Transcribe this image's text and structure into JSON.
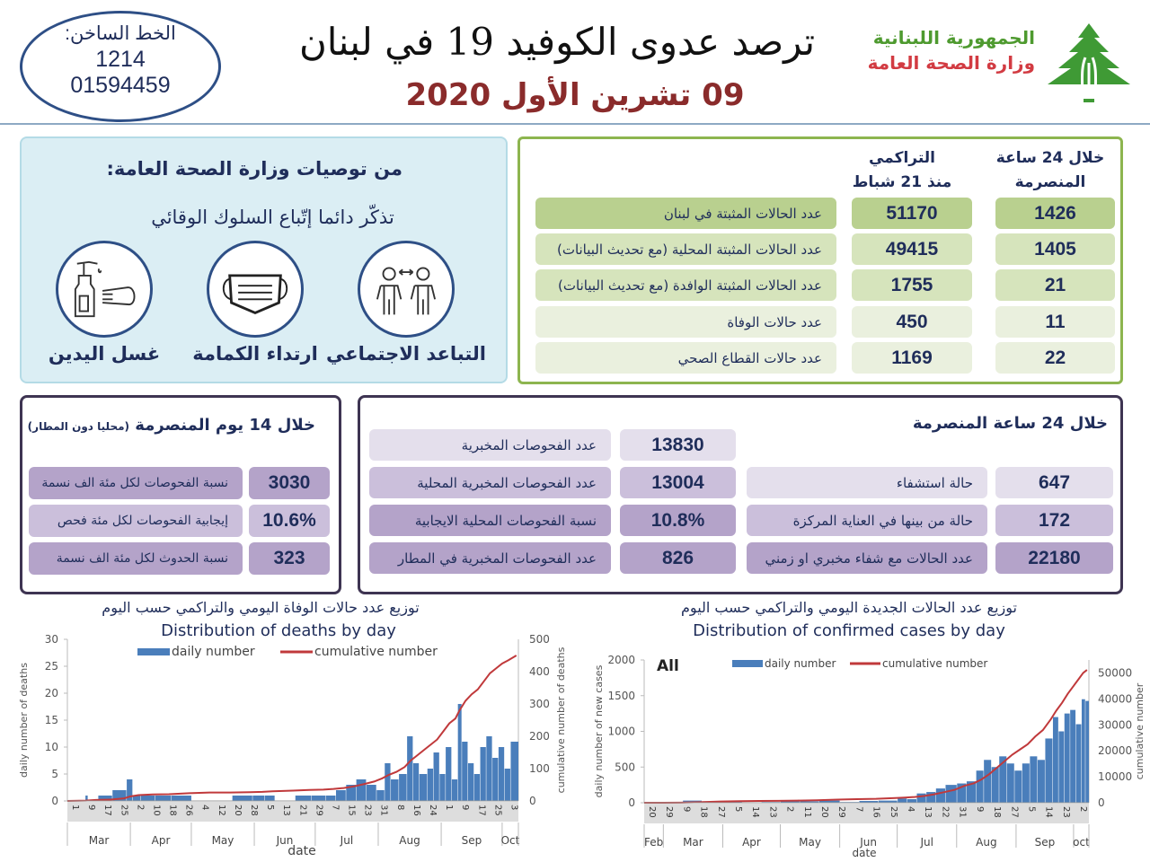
{
  "header": {
    "hotline_label": "الخط الساخن:",
    "hotline_number_1": "1214",
    "hotline_number_2": "01594459",
    "title": "ترصد عدوى الكوفيد 19 في لبنان",
    "date": "09 تشرين الأول 2020",
    "republic": "الجمهورية اللبنانية",
    "ministry": "وزارة الصحة العامة",
    "logo_icon": "cedar-tree-icon"
  },
  "recommendations": {
    "heading": "من توصيات وزارة الصحة العامة:",
    "subheading": "تذكّر دائما إتّباع السلوك الوقائي",
    "items": [
      {
        "label": "التباعد الاجتماعي",
        "icon": "social-distancing-icon"
      },
      {
        "label": "ارتداء الكمامة",
        "icon": "face-mask-icon"
      },
      {
        "label": "غسل اليدين",
        "icon": "hand-sanitizer-icon"
      }
    ]
  },
  "stats": {
    "col_24h": [
      "خلال 24 ساعة",
      "المنصرمة"
    ],
    "col_cumulative": [
      "التراكمي",
      "منذ 21 شباط"
    ],
    "rows": [
      {
        "label": "عدد الحالات المثبتة في لبنان",
        "cumulative": "51170",
        "last24h": "1426"
      },
      {
        "label": "عدد الحالات المثبتة المحلية (مع تحديث البيانات)",
        "cumulative": "49415",
        "last24h": "1405"
      },
      {
        "label": "عدد الحالات المثبتة الوافدة (مع تحديث البيانات)",
        "cumulative": "1755",
        "last24h": "21"
      },
      {
        "label": "عدد حالات الوفاة",
        "cumulative": "450",
        "last24h": "11"
      },
      {
        "label": "عدد حالات القطاع الصحي",
        "cumulative": "1169",
        "last24h": "22"
      }
    ]
  },
  "days14": {
    "title": "خلال 14 يوم المنصرمة",
    "title_note": "(محليا دون المطار)",
    "rows": [
      {
        "label": "نسبة الفحوصات لكل مئة الف نسمة",
        "value": "3030"
      },
      {
        "label": "إيجابية الفحوصات لكل مئة فحص",
        "value": "10.6%"
      },
      {
        "label": "نسبة الحدوث لكل مئة الف نسمة",
        "value": "323"
      }
    ]
  },
  "hours24": {
    "title": "خلال 24 ساعة المنصرمة",
    "tests": [
      {
        "label": "عدد الفحوصات المخبرية",
        "value": "13830"
      },
      {
        "label": "عدد الفحوصات المخبرية  المحلية",
        "value": "13004"
      },
      {
        "label": "نسبة الفحوصات المحلية الايجابية",
        "value": "10.8%"
      },
      {
        "label": "عدد الفحوصات المخبرية في المطار",
        "value": "826"
      }
    ],
    "hospital": [
      {
        "label": "حالة استشفاء",
        "value": "647"
      },
      {
        "label": "حالة من بينها في العناية المركزة",
        "value": "172"
      },
      {
        "label": "عدد الحالات مع شفاء مخبري او زمني",
        "value": "22180"
      }
    ]
  },
  "colors": {
    "bars": "#4a7ebb",
    "line": "#c0393b",
    "green_border": "#8db54f",
    "purple_border": "#3e3452",
    "title_red": "#8a2b2b"
  },
  "chart_data": [
    {
      "type": "bar",
      "title_ar": "توزيع عدد حالات  الوفاة اليومي والتراكمي حسب اليوم",
      "title": "Distribution of deaths by day",
      "xlabel": "date",
      "ylabel": "daily number of deaths",
      "y2label": "cumulative number of deaths",
      "xlim": [
        "2020-03-01",
        "2020-10-08"
      ],
      "ylim": [
        0,
        30
      ],
      "y2lim": [
        0,
        500
      ],
      "yticks": [
        0,
        5,
        10,
        15,
        20,
        25,
        30
      ],
      "y2ticks": [
        0,
        100,
        200,
        300,
        400,
        500
      ],
      "x_ticks": [
        "2020-03-01",
        "2020-03-09",
        "2020-03-17",
        "2020-03-25",
        "2020-04-02",
        "2020-04-10",
        "2020-04-18",
        "2020-04-26",
        "2020-05-04",
        "2020-05-12",
        "2020-05-20",
        "2020-05-28",
        "2020-06-05",
        "2020-06-13",
        "2020-06-21",
        "2020-06-29",
        "2020-07-07",
        "2020-07-15",
        "2020-07-23",
        "2020-07-31",
        "2020-08-08",
        "2020-08-16",
        "2020-08-24",
        "2020-09-01",
        "2020-09-09",
        "2020-09-17",
        "2020-09-25",
        "2020-10-03"
      ],
      "months": [
        "Mar",
        "Apr",
        "May",
        "Jun",
        "Jul",
        "Aug",
        "Sep",
        "Oct"
      ],
      "legend": "top-center",
      "series": [
        {
          "name": "daily number",
          "kind": "bar"
        },
        {
          "name": "cumulative number",
          "kind": "line",
          "axis": "right"
        }
      ],
      "points": [
        [
          "2020-03-10",
          1,
          1
        ],
        [
          "2020-03-15",
          0,
          3
        ],
        [
          "2020-03-22",
          1,
          4
        ],
        [
          "2020-03-29",
          2,
          8
        ],
        [
          "2020-04-01",
          4,
          14
        ],
        [
          "2020-04-05",
          1,
          18
        ],
        [
          "2020-04-12",
          1,
          20
        ],
        [
          "2020-04-20",
          1,
          21
        ],
        [
          "2020-04-30",
          1,
          24
        ],
        [
          "2020-05-10",
          0,
          26
        ],
        [
          "2020-05-20",
          0,
          26
        ],
        [
          "2020-05-30",
          1,
          27
        ],
        [
          "2020-06-05",
          1,
          28
        ],
        [
          "2020-06-10",
          1,
          30
        ],
        [
          "2020-06-20",
          0,
          32
        ],
        [
          "2020-06-28",
          1,
          34
        ],
        [
          "2020-07-05",
          1,
          35
        ],
        [
          "2020-07-10",
          1,
          37
        ],
        [
          "2020-07-15",
          2,
          40
        ],
        [
          "2020-07-20",
          3,
          45
        ],
        [
          "2020-07-25",
          4,
          52
        ],
        [
          "2020-07-30",
          3,
          60
        ],
        [
          "2020-08-03",
          2,
          70
        ],
        [
          "2020-08-06",
          7,
          80
        ],
        [
          "2020-08-10",
          4,
          90
        ],
        [
          "2020-08-14",
          5,
          105
        ],
        [
          "2020-08-17",
          12,
          125
        ],
        [
          "2020-08-20",
          7,
          140
        ],
        [
          "2020-08-24",
          5,
          160
        ],
        [
          "2020-08-27",
          6,
          175
        ],
        [
          "2020-08-30",
          9,
          190
        ],
        [
          "2020-09-02",
          5,
          215
        ],
        [
          "2020-09-05",
          10,
          240
        ],
        [
          "2020-09-08",
          4,
          255
        ],
        [
          "2020-09-10",
          18,
          280
        ],
        [
          "2020-09-13",
          11,
          310
        ],
        [
          "2020-09-16",
          7,
          330
        ],
        [
          "2020-09-19",
          5,
          345
        ],
        [
          "2020-09-22",
          10,
          370
        ],
        [
          "2020-09-25",
          12,
          395
        ],
        [
          "2020-09-28",
          8,
          410
        ],
        [
          "2020-10-01",
          10,
          425
        ],
        [
          "2020-10-04",
          6,
          435
        ],
        [
          "2020-10-08",
          11,
          450
        ]
      ]
    },
    {
      "type": "bar",
      "title_ar": "توزيع عدد الحالات الجديدة اليومي والتراكمي حسب اليوم",
      "title": "Distribution of confirmed cases by day",
      "panel_label": "All",
      "xlabel": "date",
      "ylabel": "daily number of new cases",
      "y2label": "cumulative number",
      "xlim": [
        "2020-02-20",
        "2020-10-08"
      ],
      "ylim": [
        0,
        2000
      ],
      "y2lim": [
        0,
        55000
      ],
      "yticks": [
        0,
        500,
        1000,
        1500,
        2000
      ],
      "y2ticks": [
        0,
        10000,
        20000,
        30000,
        40000,
        50000
      ],
      "x_ticks": [
        "2020-02-20",
        "2020-02-29",
        "2020-03-09",
        "2020-03-18",
        "2020-03-27",
        "2020-04-05",
        "2020-04-14",
        "2020-04-23",
        "2020-05-02",
        "2020-05-11",
        "2020-05-20",
        "2020-05-29",
        "2020-06-07",
        "2020-06-16",
        "2020-06-25",
        "2020-07-04",
        "2020-07-13",
        "2020-07-22",
        "2020-07-31",
        "2020-08-09",
        "2020-08-18",
        "2020-08-27",
        "2020-09-05",
        "2020-09-14",
        "2020-09-23",
        "2020-10-02"
      ],
      "months": [
        "Feb",
        "Mar",
        "Apr",
        "May",
        "Jun",
        "Jul",
        "Aug",
        "Sep",
        "oct"
      ],
      "legend": "top-center",
      "series": [
        {
          "name": "daily number",
          "kind": "bar"
        },
        {
          "name": "cumulative number",
          "kind": "line",
          "axis": "right"
        }
      ],
      "points": [
        [
          "2020-02-21",
          1,
          1
        ],
        [
          "2020-03-01",
          2,
          10
        ],
        [
          "2020-03-10",
          10,
          60
        ],
        [
          "2020-03-20",
          30,
          200
        ],
        [
          "2020-03-31",
          20,
          470
        ],
        [
          "2020-04-10",
          15,
          610
        ],
        [
          "2020-04-20",
          5,
          680
        ],
        [
          "2020-04-30",
          10,
          730
        ],
        [
          "2020-05-10",
          20,
          830
        ],
        [
          "2020-05-20",
          20,
          960
        ],
        [
          "2020-05-31",
          30,
          1200
        ],
        [
          "2020-06-10",
          10,
          1400
        ],
        [
          "2020-06-20",
          25,
          1500
        ],
        [
          "2020-06-30",
          30,
          1800
        ],
        [
          "2020-07-05",
          60,
          2000
        ],
        [
          "2020-07-10",
          50,
          2200
        ],
        [
          "2020-07-15",
          130,
          2600
        ],
        [
          "2020-07-20",
          150,
          3200
        ],
        [
          "2020-07-25",
          200,
          4000
        ],
        [
          "2020-07-31",
          250,
          5000
        ],
        [
          "2020-08-05",
          270,
          6500
        ],
        [
          "2020-08-10",
          300,
          7500
        ],
        [
          "2020-08-14",
          450,
          9000
        ],
        [
          "2020-08-18",
          600,
          11000
        ],
        [
          "2020-08-22",
          500,
          13500
        ],
        [
          "2020-08-26",
          650,
          16000
        ],
        [
          "2020-08-30",
          550,
          18500
        ],
        [
          "2020-09-03",
          450,
          20500
        ],
        [
          "2020-09-07",
          550,
          22500
        ],
        [
          "2020-09-11",
          650,
          25500
        ],
        [
          "2020-09-15",
          600,
          28000
        ],
        [
          "2020-09-19",
          900,
          32000
        ],
        [
          "2020-09-22",
          1200,
          35500
        ],
        [
          "2020-09-25",
          1000,
          38500
        ],
        [
          "2020-09-28",
          1250,
          42000
        ],
        [
          "2020-10-01",
          1300,
          45000
        ],
        [
          "2020-10-04",
          1100,
          48000
        ],
        [
          "2020-10-06",
          1450,
          50000
        ],
        [
          "2020-10-08",
          1426,
          51170
        ]
      ]
    }
  ]
}
